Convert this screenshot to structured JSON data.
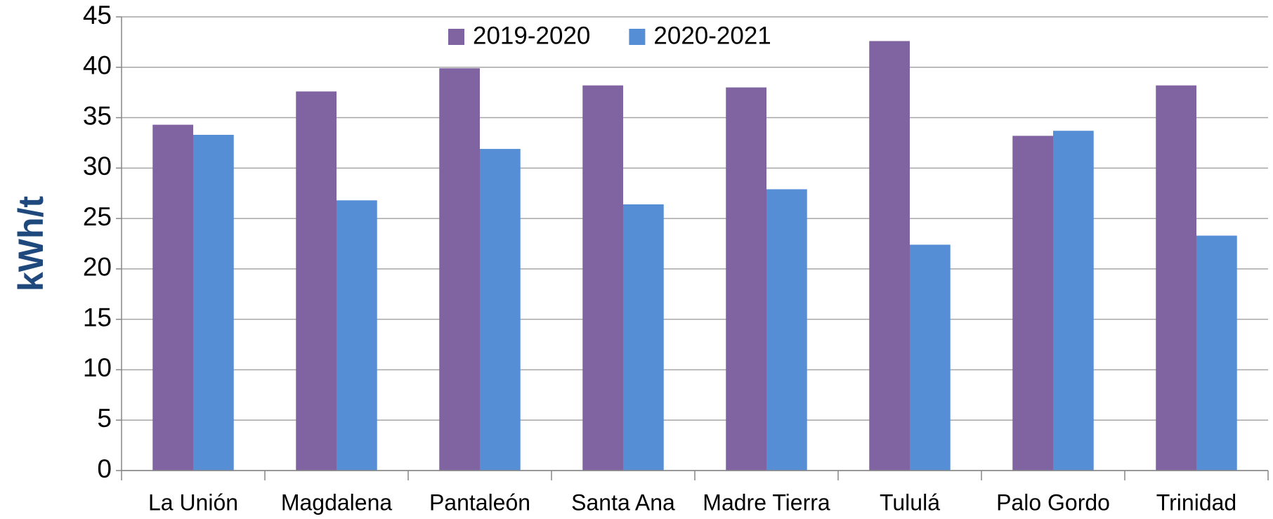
{
  "chart_data": {
    "type": "bar",
    "y_label": "kWh/t",
    "categories": [
      "La Unión",
      "Magdalena",
      "Pantaleón",
      "Santa Ana",
      "Madre Tierra",
      "Tululá",
      "Palo Gordo",
      "Trinidad"
    ],
    "series": [
      {
        "name": "2019-2020",
        "color": "#8064a2",
        "values": [
          34.3,
          37.6,
          39.9,
          38.2,
          38.0,
          42.6,
          33.2,
          38.2
        ]
      },
      {
        "name": "2020-2021",
        "color": "#558ed5",
        "values": [
          33.3,
          26.8,
          31.9,
          26.4,
          27.9,
          22.4,
          33.7,
          23.3
        ]
      }
    ],
    "ylim": [
      0,
      45
    ],
    "yticks": [
      0,
      5,
      10,
      15,
      20,
      25,
      30,
      35,
      40,
      45
    ],
    "grid": true,
    "legend": "top"
  }
}
